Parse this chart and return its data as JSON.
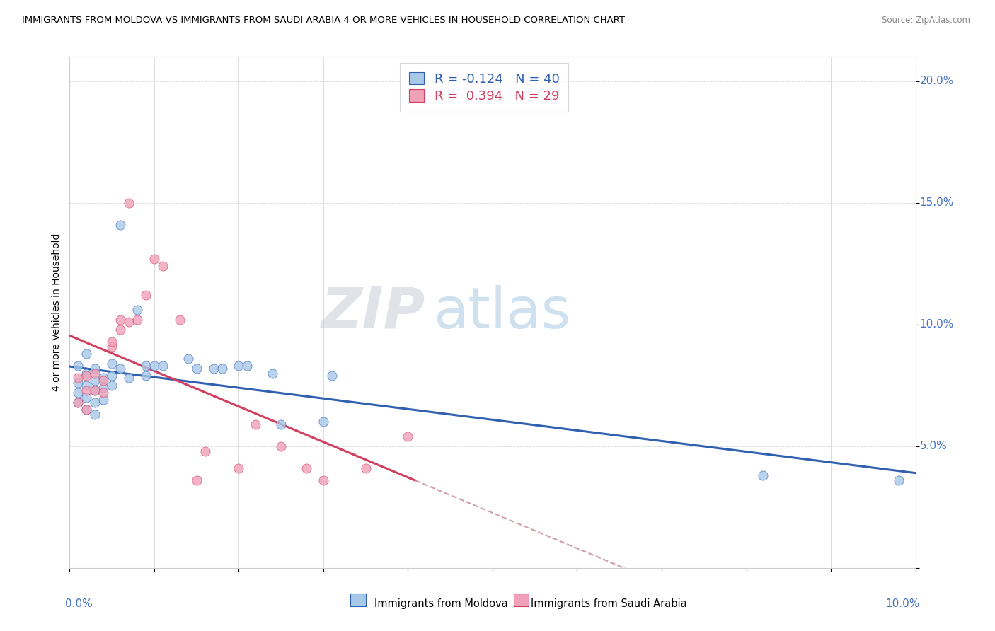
{
  "title": "IMMIGRANTS FROM MOLDOVA VS IMMIGRANTS FROM SAUDI ARABIA 4 OR MORE VEHICLES IN HOUSEHOLD CORRELATION CHART",
  "source": "Source: ZipAtlas.com",
  "xlabel_bottom_left": "0.0%",
  "xlabel_bottom_right": "10.0%",
  "ylabel": "4 or more Vehicles in Household",
  "legend_moldova": "R = -0.124   N = 40",
  "legend_saudi": "R =  0.394   N = 29",
  "legend_label_moldova": "Immigrants from Moldova",
  "legend_label_saudi": "Immigrants from Saudi Arabia",
  "color_moldova": "#a8c8e8",
  "color_saudi": "#f0a0b8",
  "color_trendline_moldova": "#3060b0",
  "color_trendline_saudi": "#d04060",
  "color_trendline_dashed": "#d0a0a8",
  "watermark_zip": "ZIP",
  "watermark_atlas": "atlas",
  "moldova_points": [
    [
      0.001,
      0.083
    ],
    [
      0.001,
      0.076
    ],
    [
      0.001,
      0.072
    ],
    [
      0.001,
      0.068
    ],
    [
      0.002,
      0.088
    ],
    [
      0.002,
      0.08
    ],
    [
      0.002,
      0.075
    ],
    [
      0.002,
      0.07
    ],
    [
      0.002,
      0.065
    ],
    [
      0.003,
      0.082
    ],
    [
      0.003,
      0.077
    ],
    [
      0.003,
      0.073
    ],
    [
      0.003,
      0.068
    ],
    [
      0.003,
      0.063
    ],
    [
      0.004,
      0.078
    ],
    [
      0.004,
      0.074
    ],
    [
      0.004,
      0.069
    ],
    [
      0.005,
      0.084
    ],
    [
      0.005,
      0.079
    ],
    [
      0.005,
      0.075
    ],
    [
      0.006,
      0.141
    ],
    [
      0.006,
      0.082
    ],
    [
      0.007,
      0.078
    ],
    [
      0.008,
      0.106
    ],
    [
      0.009,
      0.083
    ],
    [
      0.009,
      0.079
    ],
    [
      0.01,
      0.083
    ],
    [
      0.011,
      0.083
    ],
    [
      0.014,
      0.086
    ],
    [
      0.015,
      0.082
    ],
    [
      0.017,
      0.082
    ],
    [
      0.018,
      0.082
    ],
    [
      0.02,
      0.083
    ],
    [
      0.021,
      0.083
    ],
    [
      0.024,
      0.08
    ],
    [
      0.025,
      0.059
    ],
    [
      0.03,
      0.06
    ],
    [
      0.031,
      0.079
    ],
    [
      0.082,
      0.038
    ],
    [
      0.098,
      0.036
    ]
  ],
  "saudi_points": [
    [
      0.001,
      0.078
    ],
    [
      0.001,
      0.068
    ],
    [
      0.002,
      0.065
    ],
    [
      0.002,
      0.073
    ],
    [
      0.002,
      0.079
    ],
    [
      0.003,
      0.073
    ],
    [
      0.003,
      0.08
    ],
    [
      0.004,
      0.077
    ],
    [
      0.004,
      0.072
    ],
    [
      0.005,
      0.091
    ],
    [
      0.005,
      0.093
    ],
    [
      0.006,
      0.102
    ],
    [
      0.006,
      0.098
    ],
    [
      0.007,
      0.101
    ],
    [
      0.007,
      0.15
    ],
    [
      0.008,
      0.102
    ],
    [
      0.009,
      0.112
    ],
    [
      0.01,
      0.127
    ],
    [
      0.011,
      0.124
    ],
    [
      0.013,
      0.102
    ],
    [
      0.015,
      0.036
    ],
    [
      0.016,
      0.048
    ],
    [
      0.02,
      0.041
    ],
    [
      0.022,
      0.059
    ],
    [
      0.025,
      0.05
    ],
    [
      0.028,
      0.041
    ],
    [
      0.03,
      0.036
    ],
    [
      0.035,
      0.041
    ],
    [
      0.04,
      0.054
    ]
  ],
  "xlim": [
    0,
    0.1
  ],
  "ylim": [
    0.0,
    0.21
  ],
  "ytick_vals": [
    0.0,
    0.05,
    0.1,
    0.15,
    0.2
  ],
  "ytick_labels": [
    "",
    "5.0%",
    "10.0%",
    "15.0%",
    "20.0%"
  ],
  "xtick_vals": [
    0.0,
    0.01,
    0.02,
    0.03,
    0.04,
    0.05,
    0.06,
    0.07,
    0.08,
    0.09,
    0.1
  ]
}
